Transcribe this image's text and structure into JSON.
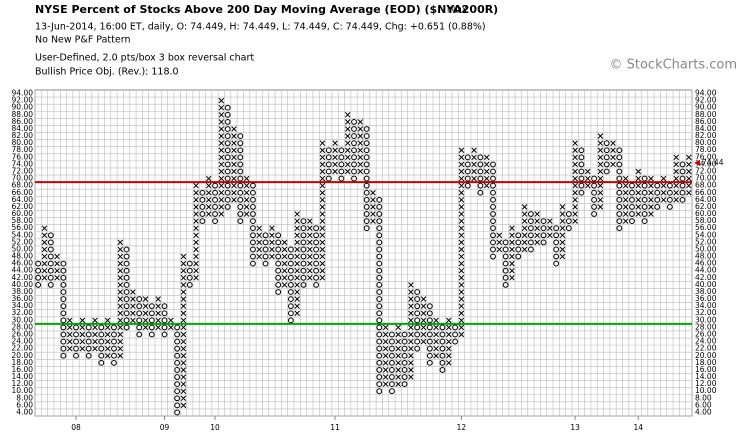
{
  "header": {
    "title": "NYSE Percent of Stocks Above 200 Day Moving Average (EOD) ($NYA200R)",
    "tag": "INDX",
    "quote": "13-Jun-2014, 16:00 ET, daily, O: 74.449, H: 74.449, L: 74.449, C: 74.449, Chg: +0.651 (0.88%)",
    "pattern": "No New P&F Pattern",
    "settings": "User-Defined, 2.0 pts/box 3 box reversal chart",
    "objective": "Bullish Price Obj. (Rev.): 118.0",
    "brand": "© StockCharts.com"
  },
  "chart_data": {
    "type": "pnf",
    "box": 2,
    "ylim": [
      3,
      95
    ],
    "current_box": 74,
    "last_price": 74.44,
    "last_price_color": "#cc0000",
    "x_color": "#000000",
    "o_color": "#000000",
    "grid": true,
    "reference_lines": [
      {
        "value": 69,
        "color": "#cc0000"
      },
      {
        "value": 29,
        "color": "#00aa00"
      }
    ],
    "yticks": [
      {
        "value": 94,
        "label": "94.00"
      },
      {
        "value": 92,
        "label": "92.00"
      },
      {
        "value": 90,
        "label": "90.00"
      },
      {
        "value": 88,
        "label": "88.00"
      },
      {
        "value": 86,
        "label": "86.00"
      },
      {
        "value": 84,
        "label": "84.00"
      },
      {
        "value": 82,
        "label": "82.00"
      },
      {
        "value": 80,
        "label": "80.00"
      },
      {
        "value": 78,
        "label": "78.00"
      },
      {
        "value": 76,
        "label": "76.00"
      },
      {
        "value": 74,
        "label": "74.00"
      },
      {
        "value": 72,
        "label": "72.00"
      },
      {
        "value": 70,
        "label": "70.00"
      },
      {
        "value": 68,
        "label": "68.00"
      },
      {
        "value": 66,
        "label": "66.00"
      },
      {
        "value": 64,
        "label": "64.00"
      },
      {
        "value": 62,
        "label": "62.00"
      },
      {
        "value": 60,
        "label": "60.00"
      },
      {
        "value": 58,
        "label": "58.00"
      },
      {
        "value": 56,
        "label": "56.00"
      },
      {
        "value": 54,
        "label": "54.00"
      },
      {
        "value": 52,
        "label": "52.00"
      },
      {
        "value": 50,
        "label": "50.00"
      },
      {
        "value": 48,
        "label": "48.00"
      },
      {
        "value": 46,
        "label": "46.00"
      },
      {
        "value": 44,
        "label": "44.00"
      },
      {
        "value": 42,
        "label": "42.00"
      },
      {
        "value": 40,
        "label": "40.00"
      },
      {
        "value": 38,
        "label": "38.00"
      },
      {
        "value": 36,
        "label": "36.00"
      },
      {
        "value": 34,
        "label": "34.00"
      },
      {
        "value": 32,
        "label": "32.00"
      },
      {
        "value": 30,
        "label": "30.00"
      },
      {
        "value": 28,
        "label": "28.00"
      },
      {
        "value": 26,
        "label": "26.00"
      },
      {
        "value": 24,
        "label": "24.00"
      },
      {
        "value": 22,
        "label": "22.00"
      },
      {
        "value": 20,
        "label": "20.00"
      },
      {
        "value": 18,
        "label": "18.00"
      },
      {
        "value": 16,
        "label": "16.00"
      },
      {
        "value": 14,
        "label": "14.00"
      },
      {
        "value": 12,
        "label": "12.00"
      },
      {
        "value": 10,
        "label": "10.00"
      },
      {
        "value": 8,
        "label": "8.00"
      },
      {
        "value": 6,
        "label": "6.00"
      },
      {
        "value": 4,
        "label": "4.00"
      }
    ],
    "xlabels": [
      {
        "column": 6,
        "label": "08"
      },
      {
        "column": 20,
        "label": "09"
      },
      {
        "column": 28,
        "label": "10"
      },
      {
        "column": 47,
        "label": "11"
      },
      {
        "column": 67,
        "label": "12"
      },
      {
        "column": 85,
        "label": "13"
      },
      {
        "column": 95,
        "label": "14"
      }
    ],
    "columns": [
      {
        "type": "O",
        "low": 40,
        "high": 46
      },
      {
        "type": "X",
        "low": 42,
        "high": 56
      },
      {
        "type": "O",
        "low": 40,
        "high": 54
      },
      {
        "type": "X",
        "low": 42,
        "high": 48
      },
      {
        "type": "O",
        "low": 20,
        "high": 46
      },
      {
        "type": "X",
        "low": 22,
        "high": 30
      },
      {
        "type": "O",
        "low": 20,
        "high": 28
      },
      {
        "type": "X",
        "low": 22,
        "high": 30
      },
      {
        "type": "O",
        "low": 20,
        "high": 28
      },
      {
        "type": "X",
        "low": 22,
        "high": 30
      },
      {
        "type": "O",
        "low": 18,
        "high": 28
      },
      {
        "type": "X",
        "low": 20,
        "high": 30
      },
      {
        "type": "O",
        "low": 18,
        "high": 28
      },
      {
        "type": "X",
        "low": 20,
        "high": 52
      },
      {
        "type": "O",
        "low": 28,
        "high": 50
      },
      {
        "type": "X",
        "low": 30,
        "high": 38
      },
      {
        "type": "O",
        "low": 26,
        "high": 36
      },
      {
        "type": "X",
        "low": 28,
        "high": 36
      },
      {
        "type": "O",
        "low": 26,
        "high": 34
      },
      {
        "type": "X",
        "low": 28,
        "high": 36
      },
      {
        "type": "O",
        "low": 26,
        "high": 34
      },
      {
        "type": "X",
        "low": 28,
        "high": 30
      },
      {
        "type": "O",
        "low": 4,
        "high": 28
      },
      {
        "type": "X",
        "low": 6,
        "high": 48
      },
      {
        "type": "O",
        "low": 40,
        "high": 46
      },
      {
        "type": "X",
        "low": 42,
        "high": 68
      },
      {
        "type": "O",
        "low": 58,
        "high": 66
      },
      {
        "type": "X",
        "low": 60,
        "high": 70
      },
      {
        "type": "O",
        "low": 58,
        "high": 68
      },
      {
        "type": "X",
        "low": 60,
        "high": 92
      },
      {
        "type": "O",
        "low": 62,
        "high": 90
      },
      {
        "type": "X",
        "low": 64,
        "high": 84
      },
      {
        "type": "O",
        "low": 58,
        "high": 82
      },
      {
        "type": "X",
        "low": 60,
        "high": 70
      },
      {
        "type": "O",
        "low": 46,
        "high": 68
      },
      {
        "type": "X",
        "low": 48,
        "high": 56
      },
      {
        "type": "O",
        "low": 46,
        "high": 54
      },
      {
        "type": "X",
        "low": 48,
        "high": 56
      },
      {
        "type": "O",
        "low": 38,
        "high": 54
      },
      {
        "type": "X",
        "low": 40,
        "high": 52
      },
      {
        "type": "O",
        "low": 30,
        "high": 50
      },
      {
        "type": "X",
        "low": 32,
        "high": 60
      },
      {
        "type": "O",
        "low": 40,
        "high": 58
      },
      {
        "type": "X",
        "low": 42,
        "high": 58
      },
      {
        "type": "O",
        "low": 40,
        "high": 56
      },
      {
        "type": "X",
        "low": 42,
        "high": 80
      },
      {
        "type": "O",
        "low": 70,
        "high": 78
      },
      {
        "type": "X",
        "low": 72,
        "high": 80
      },
      {
        "type": "O",
        "low": 70,
        "high": 78
      },
      {
        "type": "X",
        "low": 72,
        "high": 88
      },
      {
        "type": "O",
        "low": 70,
        "high": 86
      },
      {
        "type": "X",
        "low": 72,
        "high": 86
      },
      {
        "type": "O",
        "low": 56,
        "high": 84
      },
      {
        "type": "X",
        "low": 58,
        "high": 66
      },
      {
        "type": "O",
        "low": 10,
        "high": 64
      },
      {
        "type": "X",
        "low": 12,
        "high": 28
      },
      {
        "type": "O",
        "low": 10,
        "high": 26
      },
      {
        "type": "X",
        "low": 12,
        "high": 28
      },
      {
        "type": "O",
        "low": 12,
        "high": 26
      },
      {
        "type": "X",
        "low": 14,
        "high": 40
      },
      {
        "type": "O",
        "low": 22,
        "high": 38
      },
      {
        "type": "X",
        "low": 24,
        "high": 36
      },
      {
        "type": "O",
        "low": 18,
        "high": 34
      },
      {
        "type": "X",
        "low": 20,
        "high": 30
      },
      {
        "type": "O",
        "low": 16,
        "high": 28
      },
      {
        "type": "X",
        "low": 18,
        "high": 30
      },
      {
        "type": "O",
        "low": 24,
        "high": 28
      },
      {
        "type": "X",
        "low": 26,
        "high": 78
      },
      {
        "type": "O",
        "low": 68,
        "high": 76
      },
      {
        "type": "X",
        "low": 70,
        "high": 78
      },
      {
        "type": "O",
        "low": 66,
        "high": 76
      },
      {
        "type": "X",
        "low": 68,
        "high": 76
      },
      {
        "type": "O",
        "low": 48,
        "high": 74
      },
      {
        "type": "X",
        "low": 50,
        "high": 54
      },
      {
        "type": "O",
        "low": 40,
        "high": 52
      },
      {
        "type": "X",
        "low": 42,
        "high": 56
      },
      {
        "type": "O",
        "low": 48,
        "high": 54
      },
      {
        "type": "X",
        "low": 50,
        "high": 62
      },
      {
        "type": "O",
        "low": 50,
        "high": 60
      },
      {
        "type": "X",
        "low": 52,
        "high": 60
      },
      {
        "type": "O",
        "low": 52,
        "high": 58
      },
      {
        "type": "X",
        "low": 54,
        "high": 58
      },
      {
        "type": "O",
        "low": 46,
        "high": 56
      },
      {
        "type": "X",
        "low": 48,
        "high": 62
      },
      {
        "type": "O",
        "low": 56,
        "high": 60
      },
      {
        "type": "X",
        "low": 58,
        "high": 80
      },
      {
        "type": "O",
        "low": 66,
        "high": 78
      },
      {
        "type": "X",
        "low": 68,
        "high": 72
      },
      {
        "type": "O",
        "low": 60,
        "high": 70
      },
      {
        "type": "X",
        "low": 62,
        "high": 82
      },
      {
        "type": "O",
        "low": 72,
        "high": 80
      },
      {
        "type": "X",
        "low": 74,
        "high": 80
      },
      {
        "type": "O",
        "low": 56,
        "high": 78
      },
      {
        "type": "X",
        "low": 58,
        "high": 70
      },
      {
        "type": "O",
        "low": 58,
        "high": 68
      },
      {
        "type": "X",
        "low": 60,
        "high": 72
      },
      {
        "type": "O",
        "low": 58,
        "high": 70
      },
      {
        "type": "X",
        "low": 60,
        "high": 70
      },
      {
        "type": "O",
        "low": 62,
        "high": 68
      },
      {
        "type": "X",
        "low": 64,
        "high": 70
      },
      {
        "type": "O",
        "low": 62,
        "high": 68
      },
      {
        "type": "X",
        "low": 64,
        "high": 76
      },
      {
        "type": "O",
        "low": 64,
        "high": 74
      },
      {
        "type": "X",
        "low": 66,
        "high": 76
      }
    ]
  }
}
